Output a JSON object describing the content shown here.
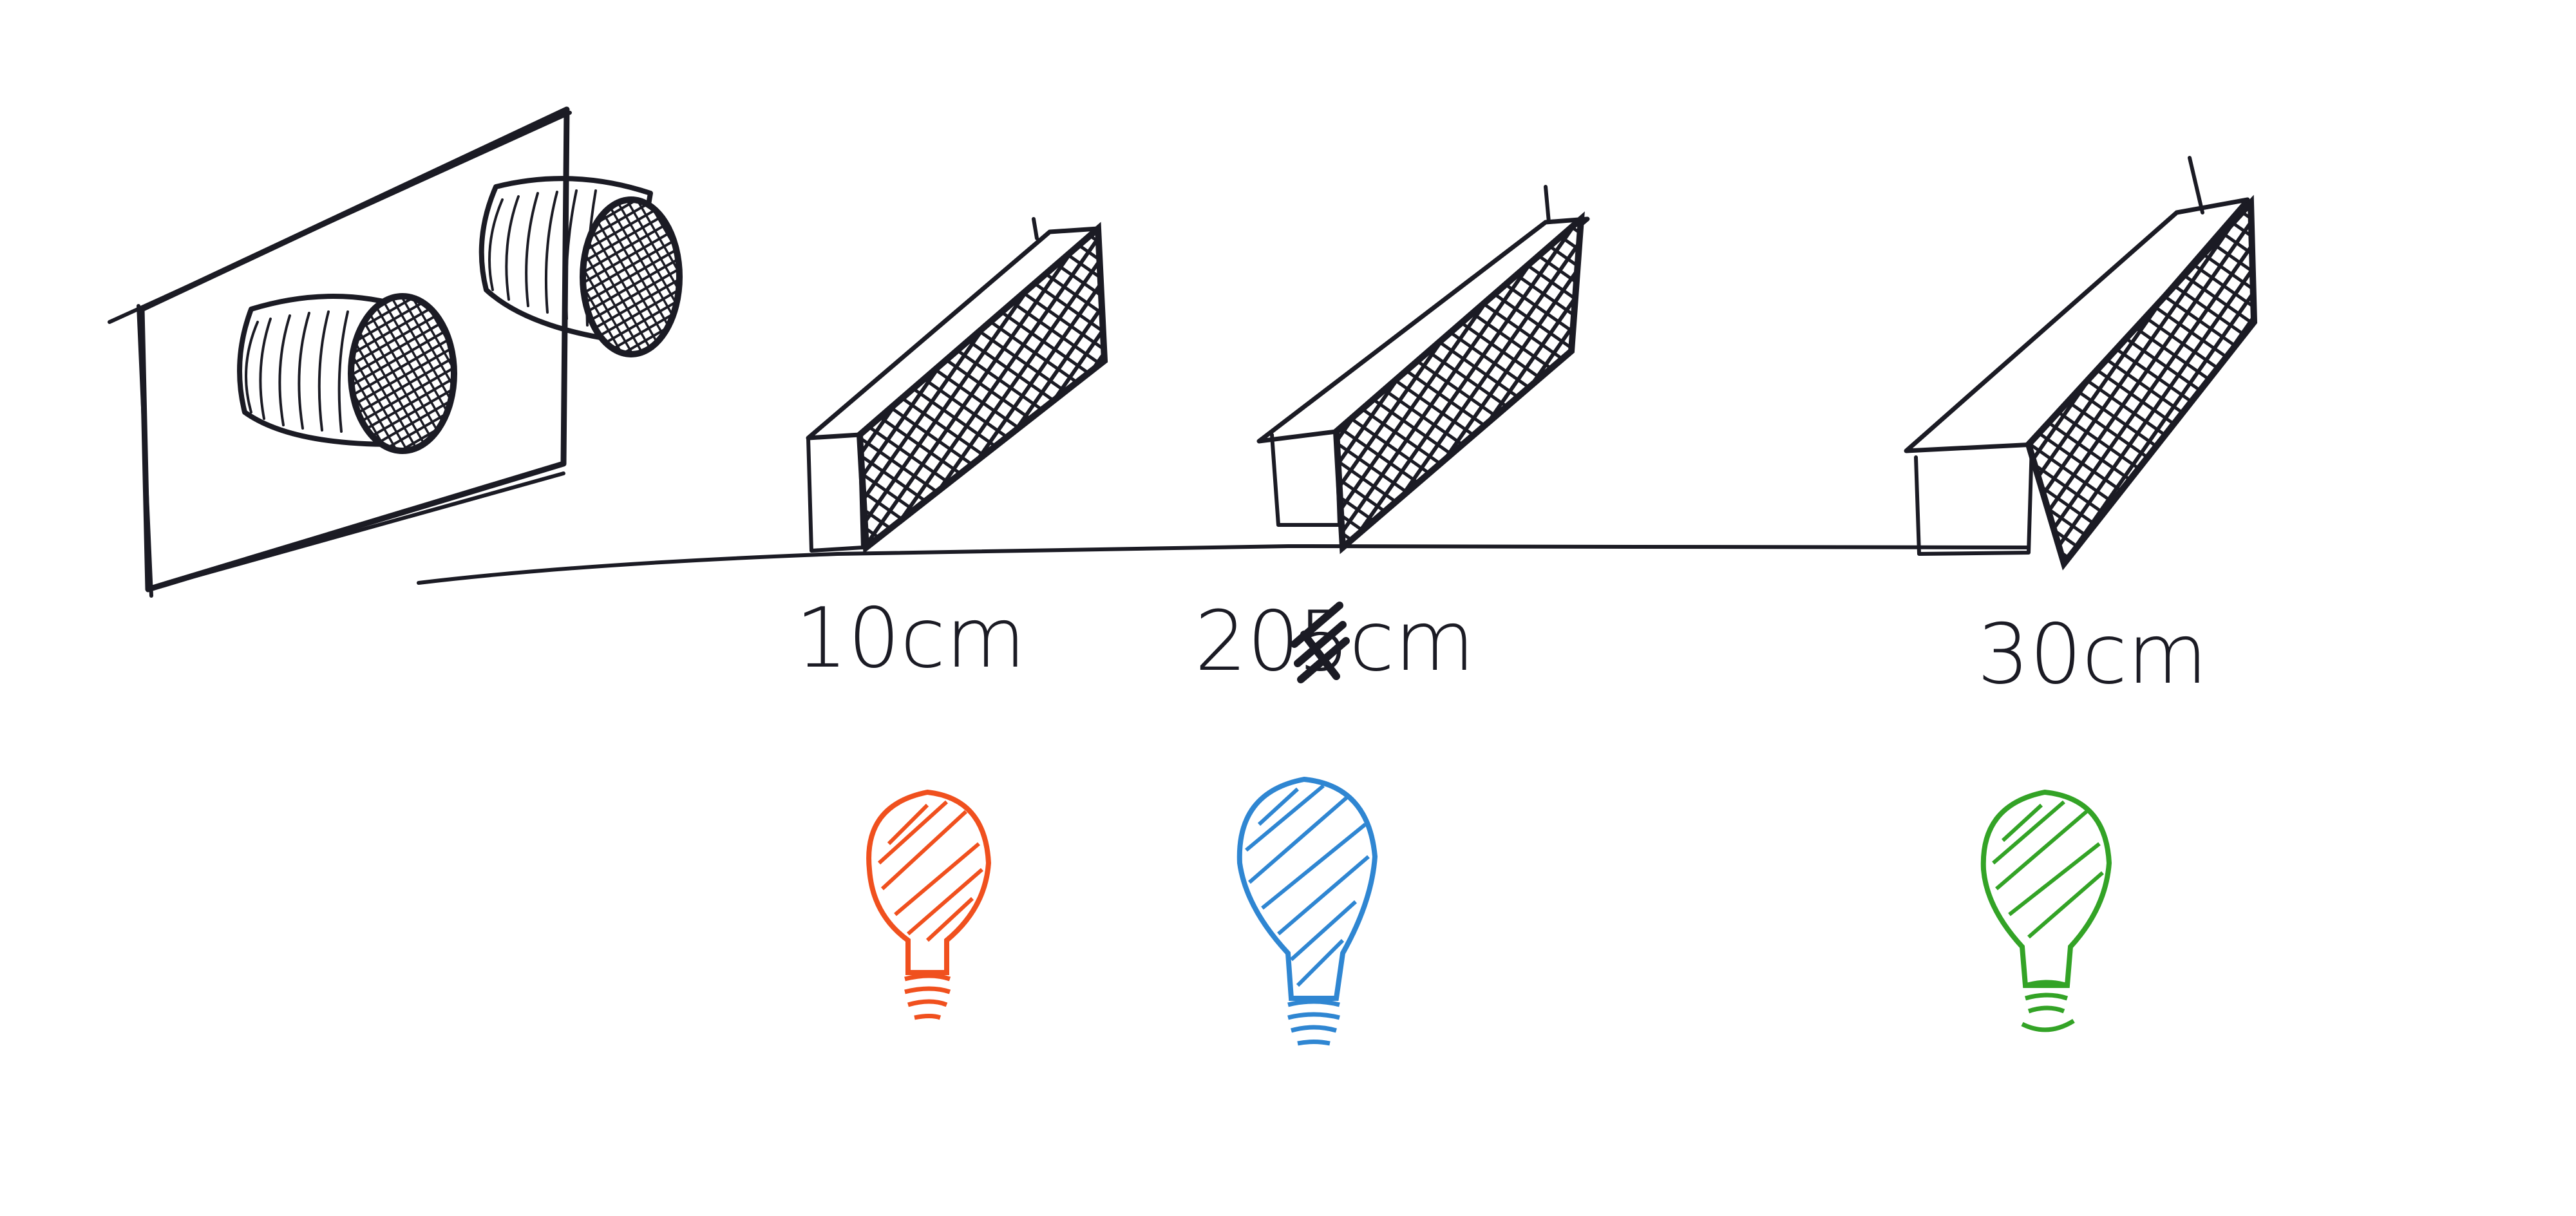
{
  "diagram": {
    "labels": [
      {
        "id": "label-10",
        "text": "10cm"
      },
      {
        "id": "label-20",
        "text": "20",
        "struck_digit": "5",
        "unit": "cm"
      },
      {
        "id": "label-30",
        "text": "30cm"
      }
    ],
    "bulbs": [
      {
        "id": "bulb-red",
        "color": "#f0501e"
      },
      {
        "id": "bulb-blue",
        "color": "#2f86d2"
      },
      {
        "id": "bulb-green",
        "color": "#33a326"
      }
    ],
    "icons": {
      "sensor": "ultrasonic-sensor-icon",
      "obstacle": "obstacle-block-icon",
      "bulb": "light-bulb-icon"
    }
  }
}
